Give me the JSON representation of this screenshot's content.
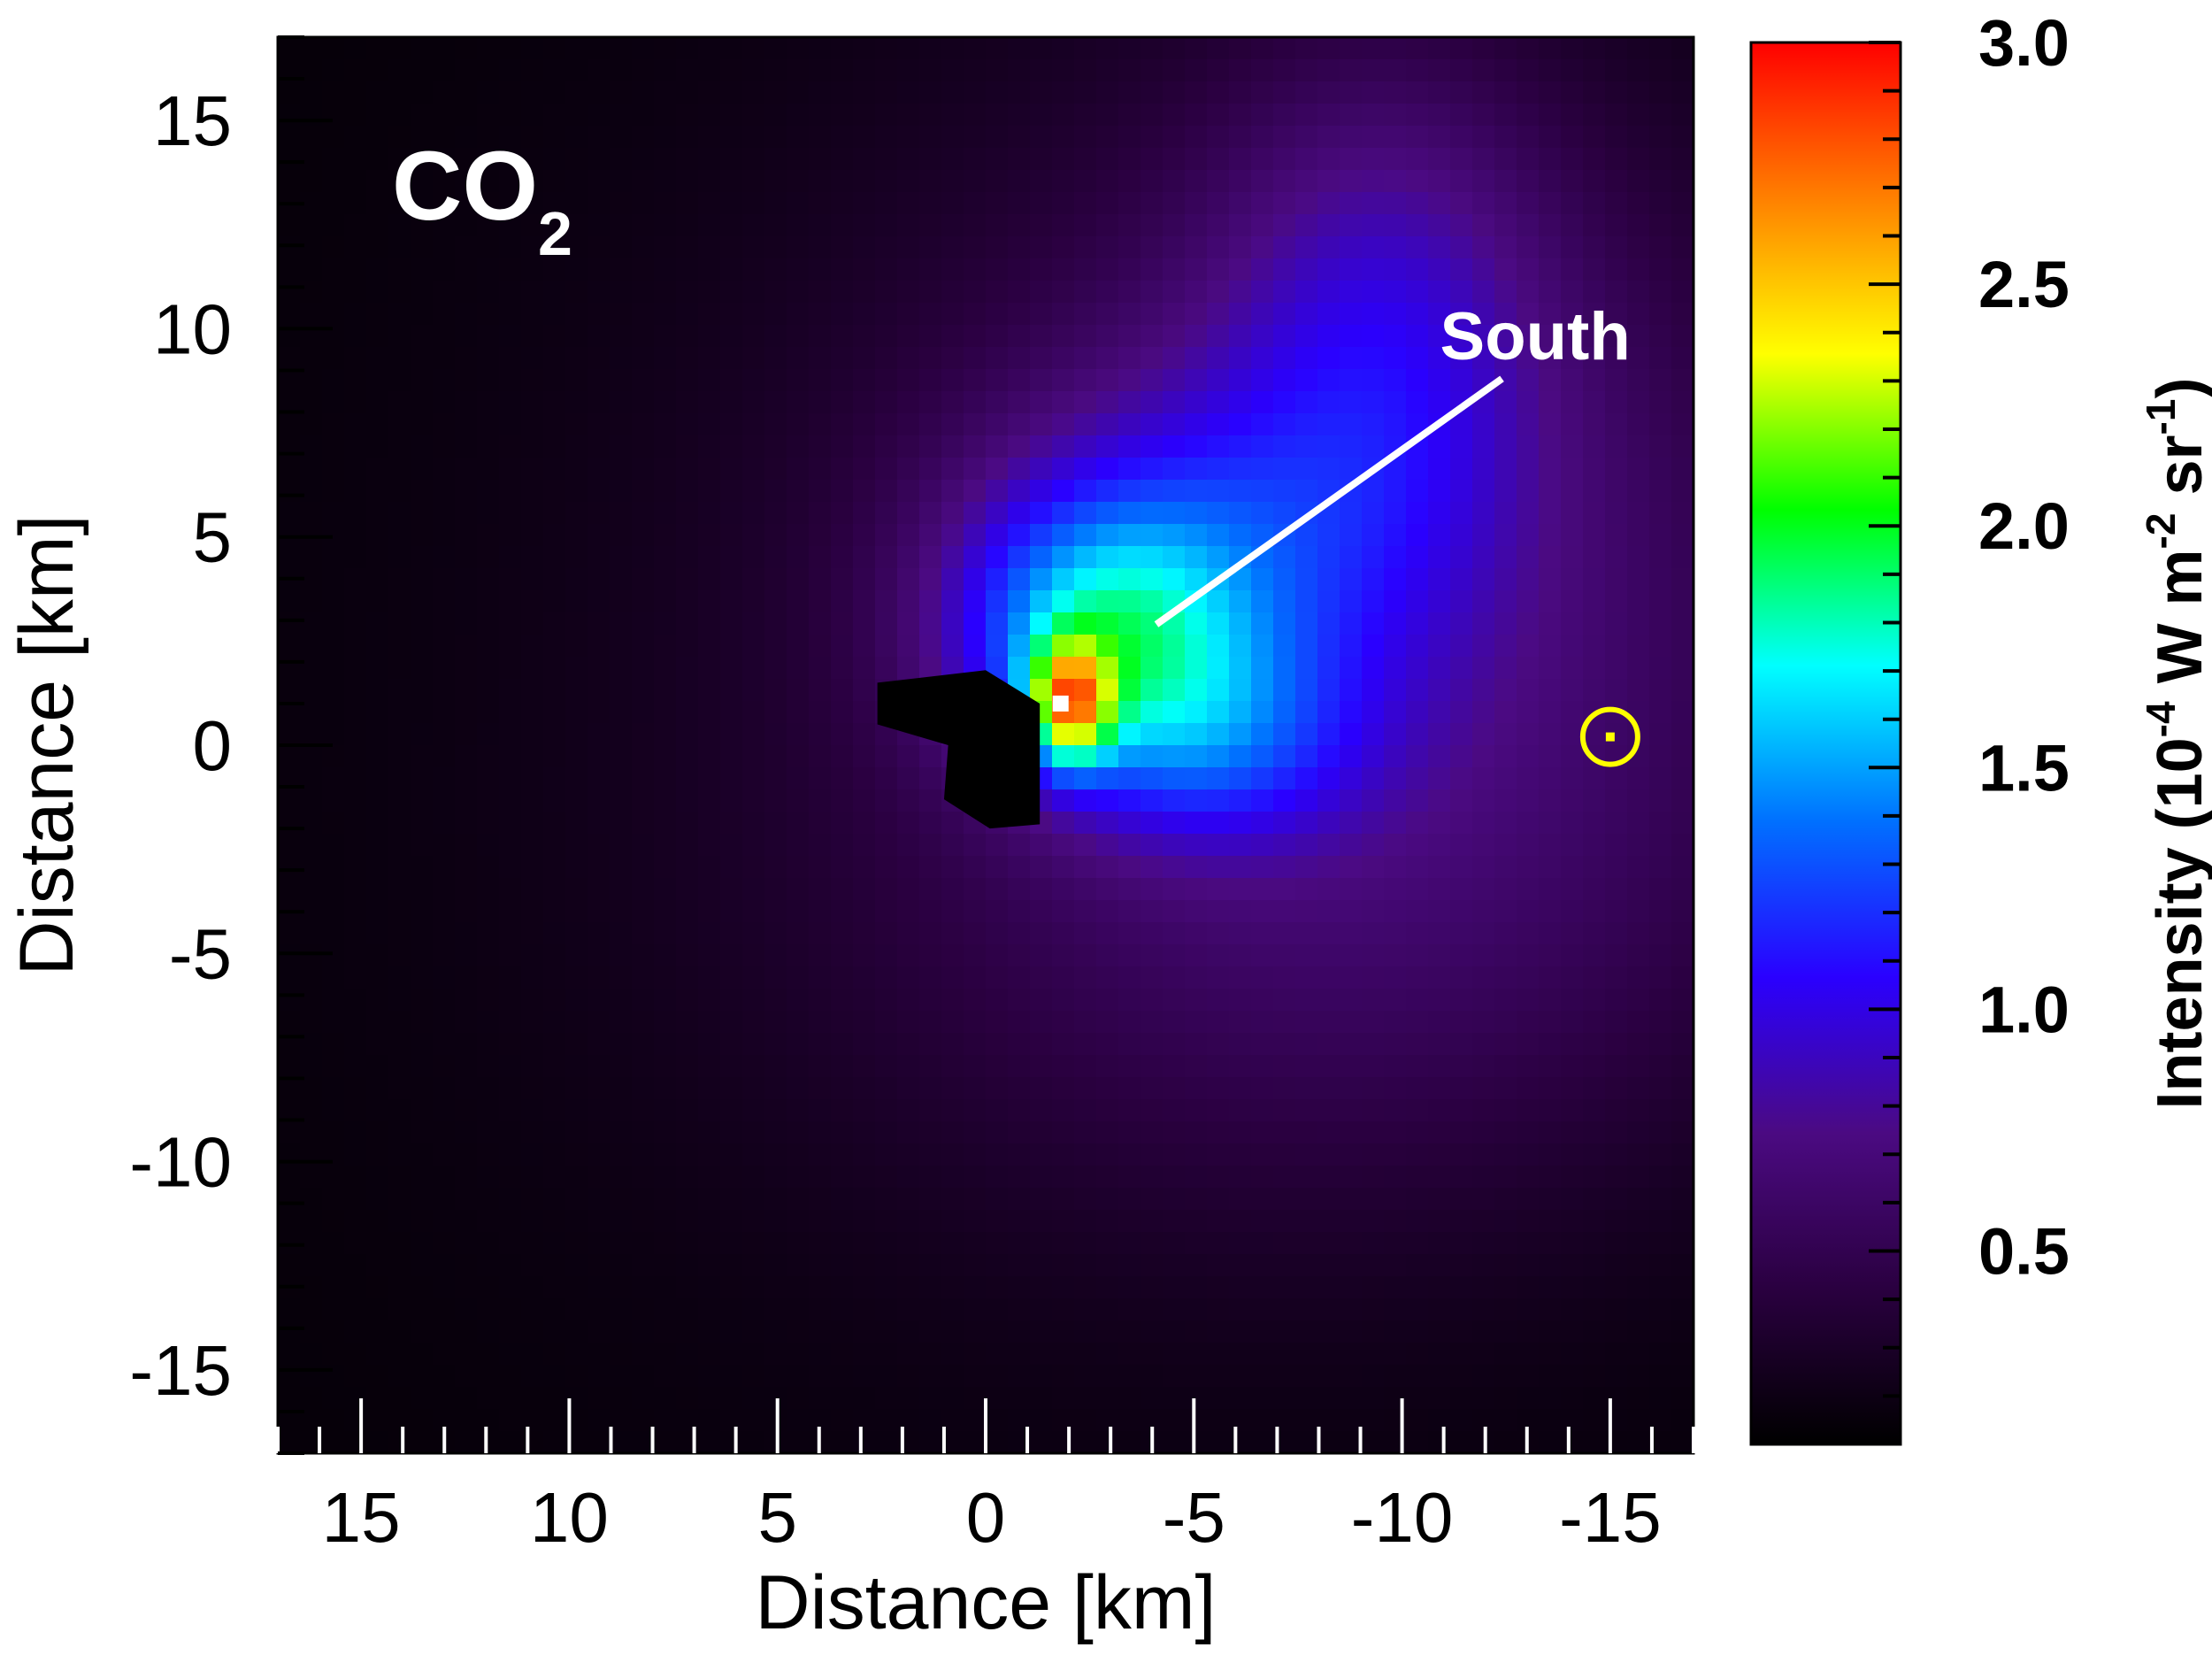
{
  "chart_data": {
    "type": "heatmap",
    "panel_label": {
      "main": "CO",
      "subscript": "2"
    },
    "xlabel": "Distance [km]",
    "ylabel": "Distance [km]",
    "xlim": [
      17,
      -17
    ],
    "ylim": [
      -17,
      17
    ],
    "x_ticks": [
      15,
      10,
      5,
      0,
      -5,
      -10,
      -15
    ],
    "x_tick_labels": [
      "15",
      "10",
      "5",
      "0",
      "-5",
      "-10",
      "-15"
    ],
    "y_ticks": [
      15,
      10,
      5,
      0,
      -5,
      -10,
      -15
    ],
    "y_tick_labels": [
      "15",
      "10",
      "5",
      "0",
      "-5",
      "-10",
      "-15"
    ],
    "colorbar": {
      "label_main": "Intensity (10",
      "label_exp1": "-4",
      "label_mid": " W m",
      "label_exp2": "-2",
      "label_mid2": " sr",
      "label_exp3": "-1",
      "label_end": ")",
      "range": [
        0.1,
        3.0
      ],
      "ticks": [
        0.5,
        1.0,
        1.5,
        2.0,
        2.5,
        3.0
      ],
      "tick_labels": [
        "0.5",
        "1.0",
        "1.5",
        "2.0",
        "2.5",
        "3.0"
      ],
      "colormap": [
        "#000000",
        "#2a0040",
        "#4b0a82",
        "#2a00ff",
        "#0070ff",
        "#00ffff",
        "#00ff00",
        "#ffff00",
        "#ff8000",
        "#ff0000"
      ]
    },
    "annotations": [
      {
        "text": "South",
        "pointer_from": [
          -12.4,
          8.8
        ],
        "pointer_to": [
          -4.1,
          2.9
        ]
      }
    ],
    "markers": [
      {
        "name": "peak",
        "x": -1.8,
        "y": 1.0,
        "color": "#ffffff"
      },
      {
        "name": "sun-symbol",
        "x": -15.0,
        "y": 0.2,
        "color": "#ffff00"
      }
    ],
    "nucleus_outline": [
      [
        2.6,
        1.5
      ],
      [
        0.0,
        1.8
      ],
      [
        -1.3,
        1.0
      ],
      [
        -1.3,
        -1.9
      ],
      [
        -0.1,
        -2.0
      ],
      [
        1.0,
        -1.3
      ],
      [
        0.9,
        0.0
      ],
      [
        2.6,
        0.5
      ]
    ],
    "emission_blobs": [
      {
        "x": -2.0,
        "y": 1.0,
        "sx": 0.7,
        "sy": 1.0,
        "amp": 1.35
      },
      {
        "x": -2.7,
        "y": 2.6,
        "sx": 2.4,
        "sy": 2.2,
        "amp": 0.85
      },
      {
        "x": -4.5,
        "y": 4.5,
        "sx": 3.8,
        "sy": 3.0,
        "amp": 0.45
      },
      {
        "x": -5.5,
        "y": 0.0,
        "sx": 2.5,
        "sy": 1.8,
        "amp": 0.45
      },
      {
        "x": -9.5,
        "y": 10.0,
        "sx": 3.0,
        "sy": 4.5,
        "amp": 0.45
      },
      {
        "x": -9.5,
        "y": 4.0,
        "sx": 8.5,
        "sy": 8.5,
        "amp": 0.5
      },
      {
        "x": -8.0,
        "y": -5.0,
        "sx": 9.0,
        "sy": 5.0,
        "amp": 0.15
      },
      {
        "x": 0.5,
        "y": 0.0,
        "sx": 14.0,
        "sy": 16.0,
        "amp": 0.08
      }
    ]
  }
}
